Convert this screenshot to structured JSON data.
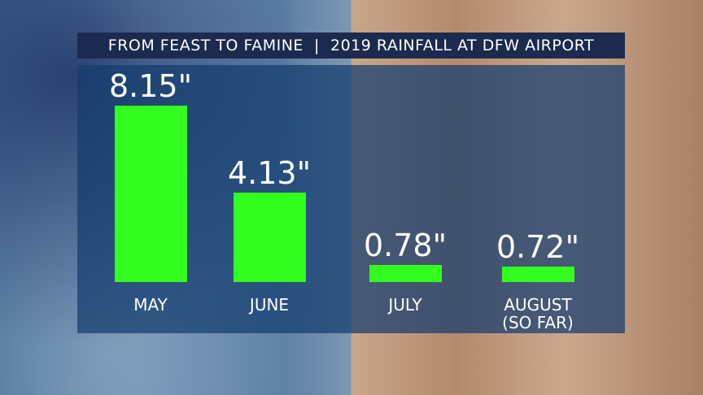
{
  "chart_data": {
    "type": "bar",
    "title": "FROM FEAST TO FAMINE  |  2019 RAINFALL AT DFW AIRPORT",
    "categories": [
      "MAY",
      "JUNE",
      "JULY",
      "AUGUST\n(SO FAR)"
    ],
    "values": [
      8.15,
      4.13,
      0.78,
      0.72
    ],
    "value_labels": [
      "8.15\"",
      "4.13\"",
      "0.78\"",
      "0.72\""
    ],
    "color": "#33ff1f"
  }
}
